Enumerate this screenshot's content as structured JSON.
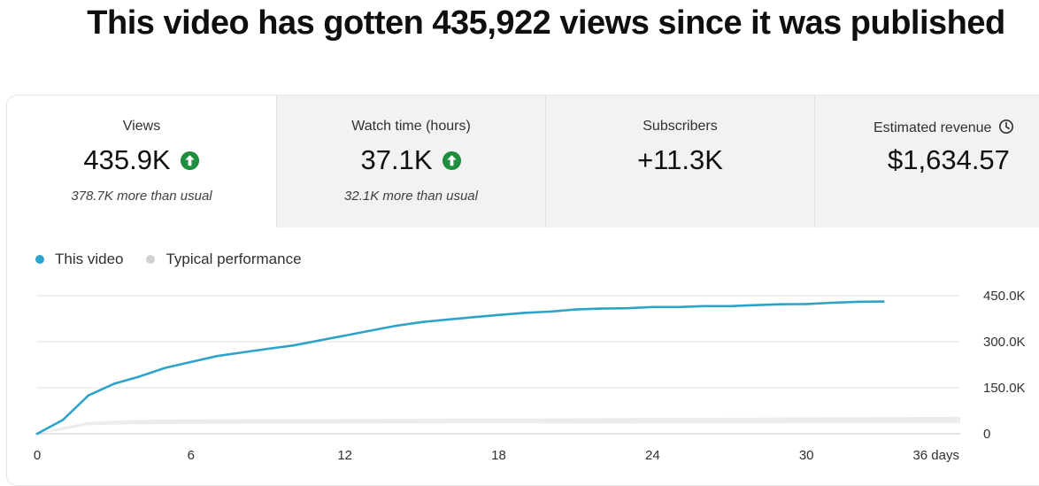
{
  "headline": "This video has gotten 435,922 views since it was published",
  "metrics": [
    {
      "label": "Views",
      "value": "435.9K",
      "note": "378.7K more than usual",
      "trend_icon": "arrow-up-circle-icon"
    },
    {
      "label": "Watch time (hours)",
      "value": "37.1K",
      "note": "32.1K more than usual",
      "trend_icon": "arrow-up-circle-icon"
    },
    {
      "label": "Subscribers",
      "value": "+11.3K",
      "note": ""
    },
    {
      "label": "Estimated revenue",
      "value": "$1,634.57",
      "note": "",
      "label_icon": "clock-icon"
    }
  ],
  "colors": {
    "this_video": "#2ea3c9",
    "typical": "#d0d0d0",
    "typical_band": "#ececec",
    "trend_up": "#1e8e3e",
    "grid": "#e0e0e0"
  },
  "chart_data": {
    "type": "line",
    "legend": [
      "This video",
      "Typical performance"
    ],
    "legend_position": "top-left",
    "x_ticks": [
      "0",
      "6",
      "12",
      "18",
      "24",
      "30",
      "36 days"
    ],
    "y_ticks": [
      "450.0K",
      "300.0K",
      "150.0K",
      "0"
    ],
    "xlim": [
      0,
      36
    ],
    "ylim": [
      0,
      450000
    ],
    "grid": true,
    "series": [
      {
        "name": "This video",
        "x": [
          0,
          1,
          2,
          3,
          4,
          5,
          6,
          7,
          8,
          9,
          10,
          11,
          12,
          13,
          14,
          15,
          16,
          17,
          18,
          19,
          20,
          21,
          22,
          23,
          24,
          25,
          26,
          27,
          28,
          29,
          30,
          31,
          32,
          33
        ],
        "values": [
          0,
          45000,
          125000,
          163000,
          187000,
          215000,
          234000,
          253000,
          265000,
          277000,
          288000,
          304000,
          320000,
          336000,
          352000,
          364000,
          372000,
          380000,
          387000,
          394000,
          398000,
          405000,
          408000,
          409000,
          413000,
          413000,
          416000,
          416000,
          419000,
          422000,
          423000,
          427000,
          430000,
          431000
        ]
      },
      {
        "name": "Typical performance",
        "x": [
          0,
          1,
          2,
          3,
          4,
          6,
          10,
          18,
          26,
          36
        ],
        "upper": [
          0,
          22000,
          38000,
          43000,
          45000,
          47000,
          48000,
          50000,
          52000,
          55000
        ],
        "lower": [
          0,
          12000,
          28000,
          30000,
          31000,
          32000,
          33000,
          34000,
          34000,
          35000
        ]
      }
    ]
  }
}
